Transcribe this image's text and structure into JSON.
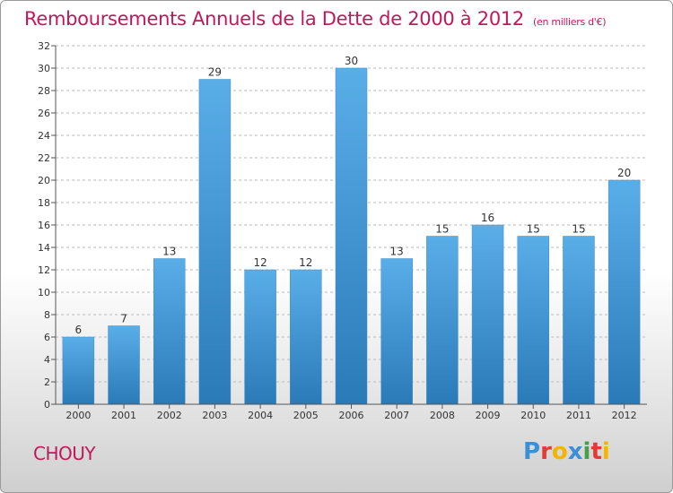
{
  "title": "Remboursements Annuels de la Dette de 2000 à 2012",
  "unit": "(en milliers d'€)",
  "commune": "CHOUY",
  "logo": {
    "text": "Proxiti",
    "letters": [
      {
        "ch": "P",
        "color": "#3a8fd6"
      },
      {
        "ch": "r",
        "color": "#e53935"
      },
      {
        "ch": "o",
        "color": "#f4b400"
      },
      {
        "ch": "x",
        "color": "#3a8fd6"
      },
      {
        "ch": "i",
        "color": "#43a047"
      },
      {
        "ch": "t",
        "color": "#e53935"
      },
      {
        "ch": "i",
        "color": "#f4b400"
      }
    ]
  },
  "colors": {
    "title": "#c2185b",
    "bar_top": "#5aaee8",
    "bar_bottom": "#2a7ab8",
    "axis": "#555555",
    "grid": "#bbbbbb"
  },
  "chart_data": {
    "type": "bar",
    "categories": [
      "2000",
      "2001",
      "2002",
      "2003",
      "2004",
      "2005",
      "2006",
      "2007",
      "2008",
      "2009",
      "2010",
      "2011",
      "2012"
    ],
    "values": [
      6,
      7,
      13,
      29,
      12,
      12,
      30,
      13,
      15,
      16,
      15,
      15,
      20
    ],
    "title": "Remboursements Annuels de la Dette de 2000 à 2012",
    "xlabel": "",
    "ylabel": "",
    "ylim": [
      0,
      32
    ],
    "yticks": [
      0,
      2,
      4,
      6,
      8,
      10,
      12,
      14,
      16,
      18,
      20,
      22,
      24,
      26,
      28,
      30,
      32
    ],
    "data_labels": true,
    "grid": "dashed-horizontal",
    "legend": "none"
  }
}
